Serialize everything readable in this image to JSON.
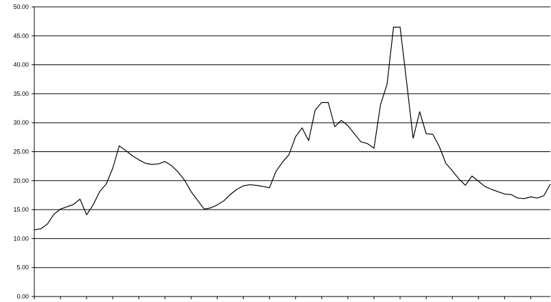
{
  "chart_data": {
    "type": "line",
    "title": "",
    "xlabel": "",
    "ylabel": "",
    "ylim": [
      0,
      50
    ],
    "y_ticks": [
      "0.00",
      "5.00",
      "10.00",
      "15.00",
      "20.00",
      "25.00",
      "30.00",
      "35.00",
      "40.00",
      "45.00",
      "50.00"
    ],
    "grid": "horizontal",
    "legend": "none",
    "line_color": "#000000",
    "grid_color": "#000000",
    "series": [
      {
        "values": [
          11.5,
          11.7,
          12.5,
          14.2,
          15.1,
          15.5,
          15.9,
          16.8,
          14.1,
          15.8,
          18.1,
          19.4,
          22.1,
          26.0,
          25.2,
          24.3,
          23.6,
          23.0,
          22.8,
          22.9,
          23.3,
          22.6,
          21.5,
          20.1,
          18.1,
          16.6,
          15.1,
          15.3,
          15.8,
          16.5,
          17.6,
          18.5,
          19.1,
          19.3,
          19.2,
          19.0,
          18.8,
          21.6,
          23.2,
          24.5,
          27.6,
          29.1,
          26.9,
          32.2,
          33.5,
          33.5,
          29.3,
          30.4,
          29.5,
          28.1,
          26.7,
          26.4,
          25.6,
          33.1,
          36.6,
          46.5,
          46.5,
          37.0,
          27.3,
          31.9,
          28.1,
          28.0,
          25.9,
          23.0,
          21.7,
          20.3,
          19.2,
          20.8,
          19.9,
          19.0,
          18.5,
          18.1,
          17.7,
          17.6,
          17.0,
          16.9,
          17.2,
          17.0,
          17.4,
          19.4
        ]
      }
    ]
  }
}
